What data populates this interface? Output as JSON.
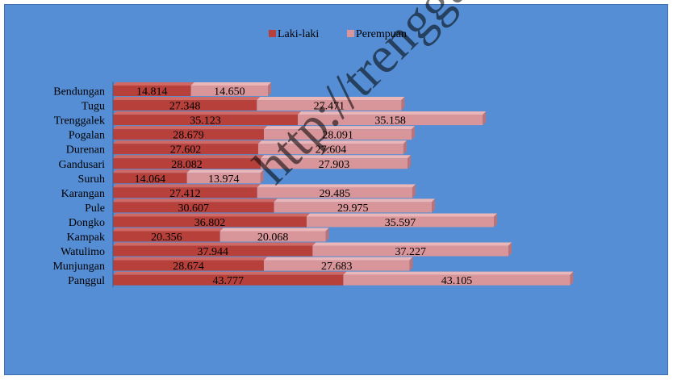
{
  "watermark": "http://trenggal",
  "colors": {
    "background": "#558ed5",
    "male": "#b7403b",
    "male_top": "#d06864",
    "male_side": "#8c2b28",
    "female": "#d9969a",
    "female_top": "#eab6b8",
    "female_side": "#b8747a",
    "text": "#000000"
  },
  "chart_data": {
    "type": "bar",
    "orientation": "horizontal",
    "stacked": true,
    "legend_position": "top",
    "title": "",
    "xlabel": "",
    "ylabel": "",
    "xlim": [
      0,
      90000
    ],
    "grid": false,
    "categories": [
      "Bendungan",
      "Tugu",
      "Trenggalek",
      "Pogalan",
      "Durenan",
      "Gandusari",
      "Suruh",
      "Karangan",
      "Pule",
      "Dongko",
      "Kampak",
      "Watulimo",
      "Munjungan",
      "Panggul"
    ],
    "series": [
      {
        "name": "Laki-laki",
        "values": [
          14814,
          27348,
          35123,
          28679,
          27602,
          28082,
          14064,
          27412,
          30607,
          36802,
          20356,
          37944,
          28674,
          43777
        ],
        "labels": [
          "14.814",
          "27.348",
          "35.123",
          "28.679",
          "27.602",
          "28.082",
          "14.064",
          "27.412",
          "30.607",
          "36.802",
          "20.356",
          "37.944",
          "28.674",
          "43.777"
        ]
      },
      {
        "name": "Perempuan",
        "values": [
          14650,
          27471,
          35158,
          28091,
          27604,
          27903,
          13974,
          29485,
          29975,
          35597,
          20068,
          37227,
          27683,
          43105
        ],
        "labels": [
          "14.650",
          "27.471",
          "35.158",
          "28.091",
          "27.604",
          "27.903",
          "13.974",
          "29.485",
          "29.975",
          "35.597",
          "20.068",
          "37.227",
          "27.683",
          "43.105"
        ]
      }
    ]
  }
}
